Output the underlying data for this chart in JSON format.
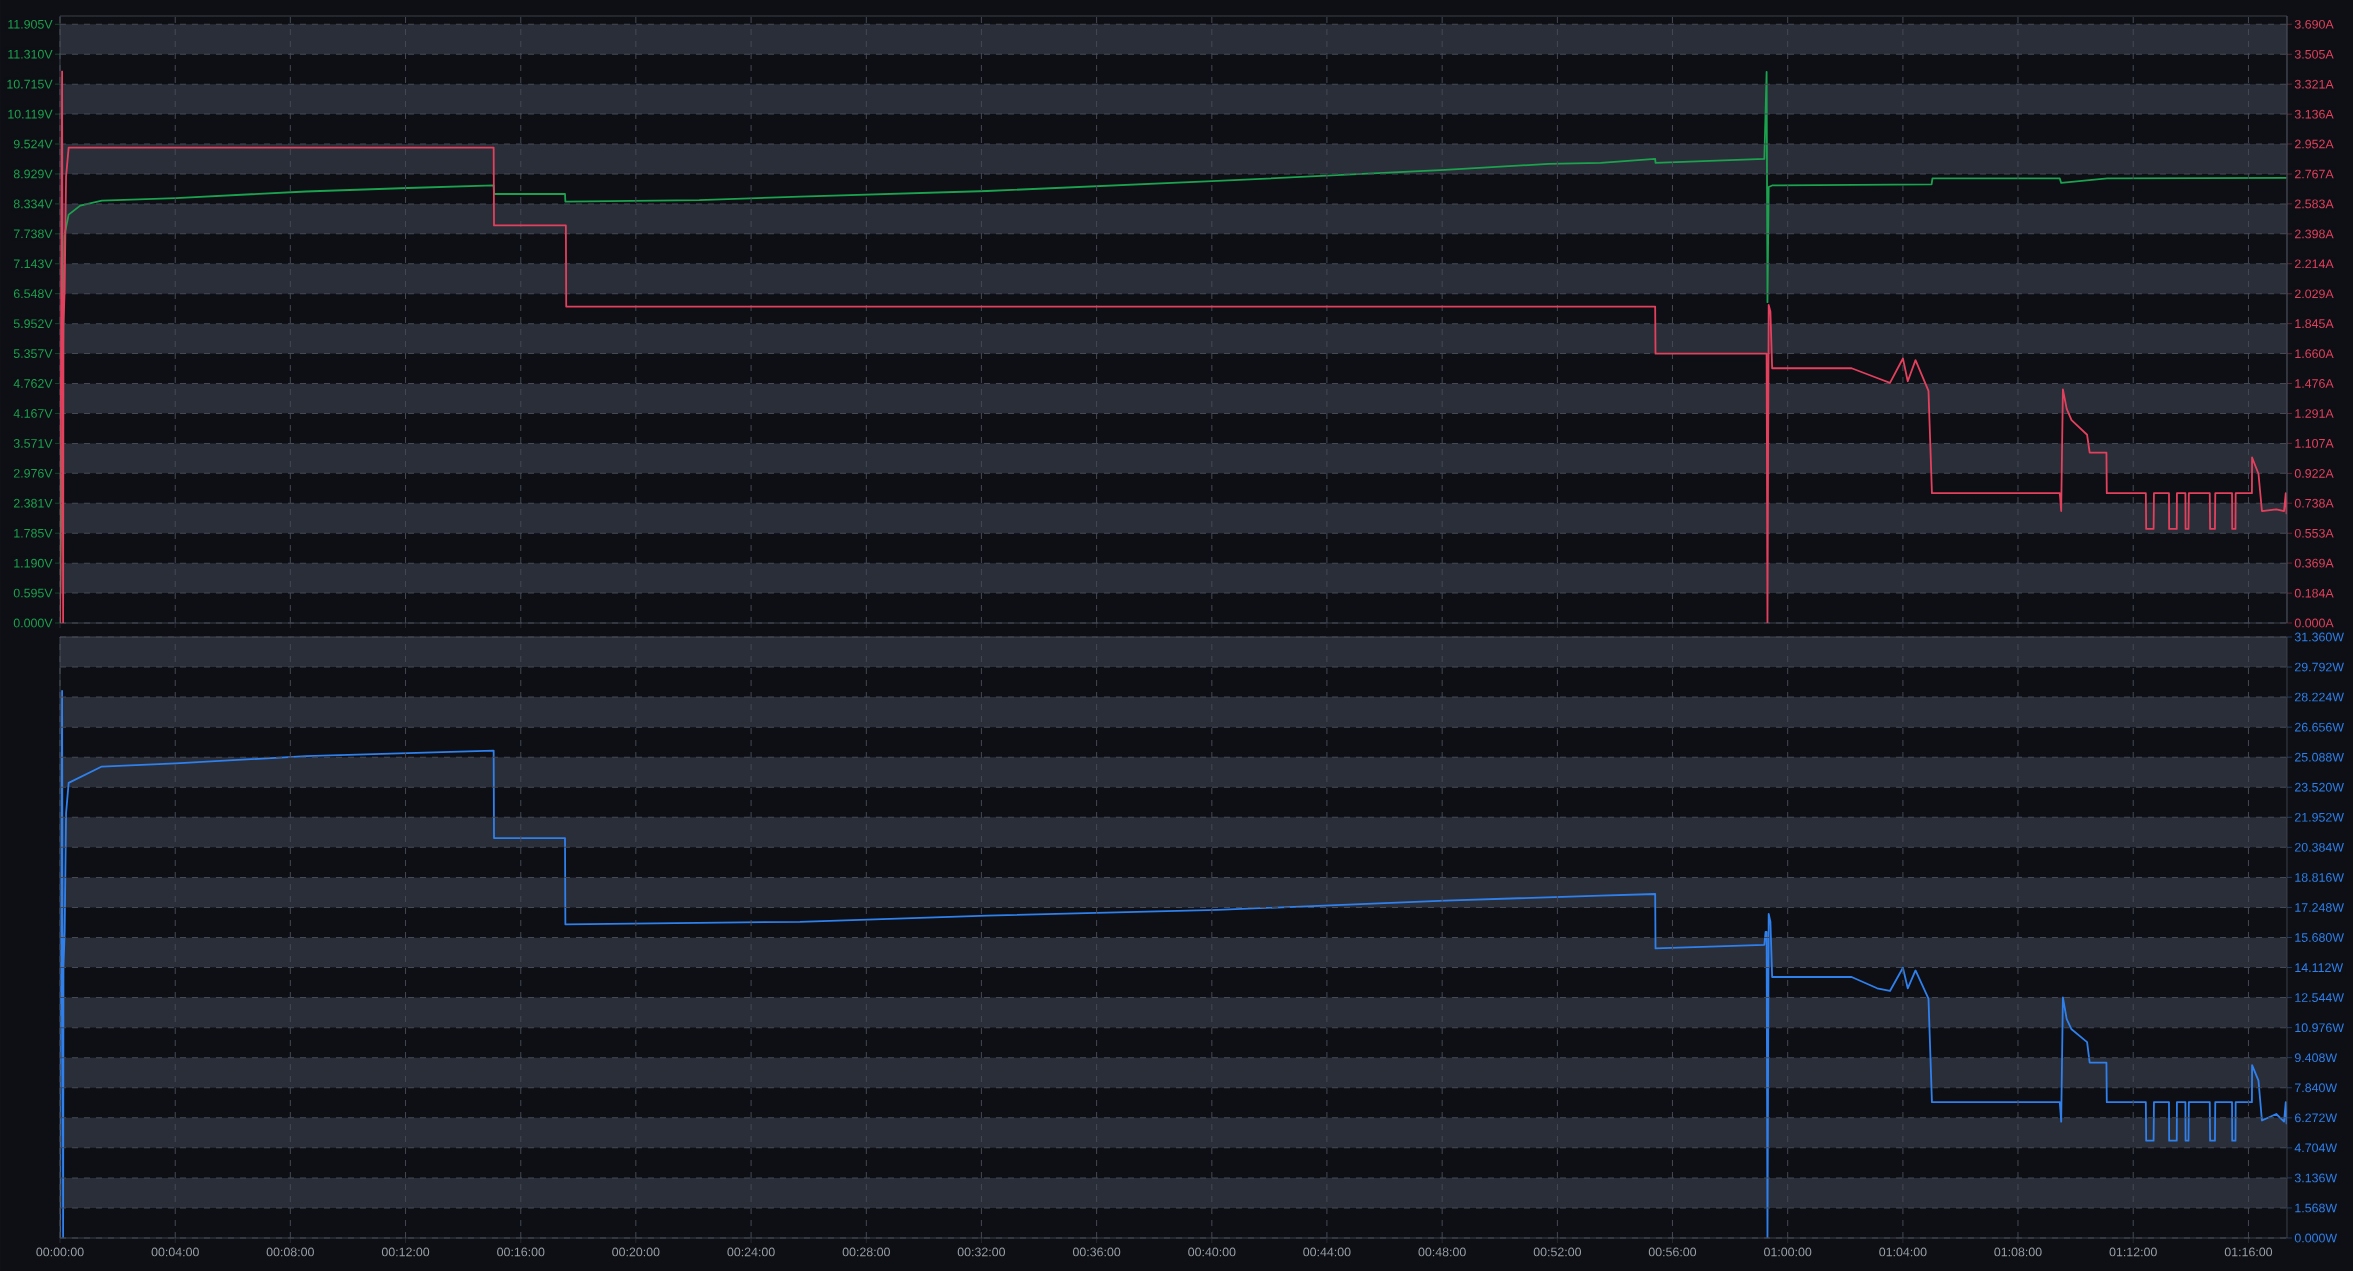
{
  "chart_data": [
    {
      "type": "line",
      "grid": true,
      "tick_labels": "y",
      "xlim": [
        0,
        1.289
      ],
      "xticks": [
        {
          "value": 0,
          "label": null
        },
        {
          "value": 0.0667,
          "label": null
        },
        {
          "value": 0.1333,
          "label": null
        },
        {
          "value": 0.2,
          "label": null
        },
        {
          "value": 0.2667,
          "label": null
        },
        {
          "value": 0.3333,
          "label": null
        },
        {
          "value": 0.4,
          "label": null
        },
        {
          "value": 0.4667,
          "label": null
        },
        {
          "value": 0.5333,
          "label": null
        },
        {
          "value": 0.6,
          "label": null
        },
        {
          "value": 0.6667,
          "label": null
        },
        {
          "value": 0.7333,
          "label": null
        },
        {
          "value": 0.8,
          "label": null
        },
        {
          "value": 0.8667,
          "label": null
        },
        {
          "value": 0.9333,
          "label": null
        },
        {
          "value": 1.0,
          "label": null
        },
        {
          "value": 1.0667,
          "label": null
        },
        {
          "value": 1.1333,
          "label": null
        },
        {
          "value": 1.2,
          "label": null
        },
        {
          "value": 1.2667,
          "label": null
        }
      ],
      "ylim": [
        0,
        12.07
      ],
      "yticks": [
        {
          "value": 0,
          "label": "0.000V"
        },
        {
          "value": 0.595,
          "label": "0.595V"
        },
        {
          "value": 1.19,
          "label": "1.190V"
        },
        {
          "value": 1.785,
          "label": "1.785V"
        },
        {
          "value": 2.381,
          "label": "2.381V"
        },
        {
          "value": 2.976,
          "label": "2.976V"
        },
        {
          "value": 3.571,
          "label": "3.571V"
        },
        {
          "value": 4.167,
          "label": "4.167V"
        },
        {
          "value": 4.762,
          "label": "4.762V"
        },
        {
          "value": 5.357,
          "label": "5.357V"
        },
        {
          "value": 5.952,
          "label": "5.952V"
        },
        {
          "value": 6.548,
          "label": "6.548V"
        },
        {
          "value": 7.143,
          "label": "7.143V"
        },
        {
          "value": 7.738,
          "label": "7.738V"
        },
        {
          "value": 8.334,
          "label": "8.334V"
        },
        {
          "value": 8.929,
          "label": "8.929V"
        },
        {
          "value": 9.524,
          "label": "9.524V"
        },
        {
          "value": 10.119,
          "label": "10.119V"
        },
        {
          "value": 10.715,
          "label": "10.715V"
        },
        {
          "value": 11.31,
          "label": "11.310V"
        },
        {
          "value": 11.905,
          "label": "11.905V"
        }
      ],
      "y2lim": [
        0,
        3.741
      ],
      "y2ticks": [
        {
          "value": 0,
          "label": "0.000A"
        },
        {
          "value": 0.184,
          "label": "0.184A"
        },
        {
          "value": 0.369,
          "label": "0.369A"
        },
        {
          "value": 0.553,
          "label": "0.553A"
        },
        {
          "value": 0.738,
          "label": "0.738A"
        },
        {
          "value": 0.922,
          "label": "0.922A"
        },
        {
          "value": 1.107,
          "label": "1.107A"
        },
        {
          "value": 1.291,
          "label": "1.291A"
        },
        {
          "value": 1.476,
          "label": "1.476A"
        },
        {
          "value": 1.66,
          "label": "1.660A"
        },
        {
          "value": 1.845,
          "label": "1.845A"
        },
        {
          "value": 2.029,
          "label": "2.029A"
        },
        {
          "value": 2.214,
          "label": "2.214A"
        },
        {
          "value": 2.398,
          "label": "2.398A"
        },
        {
          "value": 2.583,
          "label": "2.583A"
        },
        {
          "value": 2.767,
          "label": "2.767A"
        },
        {
          "value": 2.952,
          "label": "2.952A"
        },
        {
          "value": 3.136,
          "label": "3.136A"
        },
        {
          "value": 3.321,
          "label": "3.321A"
        },
        {
          "value": 3.505,
          "label": "3.505A"
        },
        {
          "value": 3.69,
          "label": "3.690A"
        }
      ],
      "bands": [
        {
          "axis": "y",
          "from": 11.31,
          "to": 11.905,
          "color": "#2a2e38"
        },
        {
          "axis": "y",
          "from": 10.119,
          "to": 10.715,
          "color": "#2a2e38"
        },
        {
          "axis": "y",
          "from": 8.929,
          "to": 9.524,
          "color": "#2a2e38"
        },
        {
          "axis": "y",
          "from": 7.738,
          "to": 8.334,
          "color": "#2a2e38"
        },
        {
          "axis": "y",
          "from": 6.548,
          "to": 7.143,
          "color": "#2a2e38"
        },
        {
          "axis": "y",
          "from": 5.357,
          "to": 5.952,
          "color": "#2a2e38"
        },
        {
          "axis": "y",
          "from": 4.167,
          "to": 4.762,
          "color": "#2a2e38"
        },
        {
          "axis": "y",
          "from": 2.976,
          "to": 3.571,
          "color": "#2a2e38"
        },
        {
          "axis": "y",
          "from": 1.785,
          "to": 2.381,
          "color": "#2a2e38"
        },
        {
          "axis": "y",
          "from": 0.595,
          "to": 1.19,
          "color": "#2a2e38"
        }
      ],
      "series": [
        {
          "color": "#1ca24f",
          "axis": "y",
          "x": [
            0,
            0.0025,
            0.005,
            0.0117,
            0.0242,
            0.067,
            0.1423,
            0.2013,
            0.251,
            0.2512,
            0.2923,
            0.2925,
            0.37,
            0.4283,
            0.5367,
            0.67,
            0.8017,
            0.8617,
            0.8917,
            0.9233,
            0.9235,
            0.9865,
            0.9878,
            0.9883,
            0.989,
            0.991,
            1.0833,
            1.0838,
            1.1575,
            1.1583,
            1.185,
            1.2888
          ],
          "values": [
            0,
            7.7,
            8.12,
            8.3,
            8.4,
            8.45,
            8.58,
            8.65,
            8.7,
            8.53,
            8.53,
            8.38,
            8.41,
            8.48,
            8.59,
            8.79,
            9.01,
            9.13,
            9.15,
            9.23,
            9.15,
            9.23,
            10.96,
            6.38,
            8.67,
            8.7,
            8.72,
            8.84,
            8.84,
            8.75,
            8.84,
            8.85
          ]
        },
        {
          "color": "#e3405e",
          "axis": "y2",
          "x": [
            0,
            0.0012,
            0.0018,
            0.002,
            0.0027,
            0.0035,
            0.005,
            0.251,
            0.2512,
            0.2928,
            0.293,
            0.9233,
            0.9235,
            0.9878,
            0.9883,
            0.989,
            0.99,
            0.991,
            1.037,
            1.0518,
            1.0592,
            1.0667,
            1.0695,
            1.074,
            1.0815,
            1.0835,
            1.1575,
            1.1583,
            1.1593,
            1.1615,
            1.1643,
            1.1733,
            1.1748,
            1.1845,
            1.1847,
            1.2073,
            1.2075,
            1.2118,
            1.212,
            1.2207,
            1.2208,
            1.2252,
            1.2253,
            1.2302,
            1.2303,
            1.232,
            1.2322,
            1.2443,
            1.2445,
            1.2473,
            1.2475,
            1.2572,
            1.2573,
            1.2592,
            1.2593,
            1.2687,
            1.2688,
            1.2725,
            1.2745,
            1.2828,
            1.2873,
            1.2883,
            1.2888
          ],
          "values": [
            0,
            3.4,
            0,
            1.83,
            2.06,
            2.75,
            2.93,
            2.93,
            2.45,
            2.45,
            1.95,
            1.95,
            1.66,
            1.66,
            0,
            1.96,
            1.92,
            1.57,
            1.57,
            1.51,
            1.48,
            1.63,
            1.49,
            1.62,
            1.43,
            0.8,
            0.8,
            0.69,
            1.44,
            1.32,
            1.25,
            1.16,
            1.05,
            1.05,
            0.8,
            0.8,
            0.58,
            0.58,
            0.8,
            0.8,
            0.58,
            0.58,
            0.8,
            0.8,
            0.58,
            0.58,
            0.8,
            0.8,
            0.58,
            0.58,
            0.8,
            0.8,
            0.58,
            0.58,
            0.8,
            0.8,
            1.02,
            0.92,
            0.69,
            0.7,
            0.69,
            0.8,
            0.67
          ]
        }
      ]
    },
    {
      "type": "line",
      "grid": true,
      "xlim": [
        0,
        1.289
      ],
      "xticks": [
        {
          "value": 0,
          "label": "00:00:00"
        },
        {
          "value": 0.0667,
          "label": "00:04:00"
        },
        {
          "value": 0.1333,
          "label": "00:08:00"
        },
        {
          "value": 0.2,
          "label": "00:12:00"
        },
        {
          "value": 0.2667,
          "label": "00:16:00"
        },
        {
          "value": 0.3333,
          "label": "00:20:00"
        },
        {
          "value": 0.4,
          "label": "00:24:00"
        },
        {
          "value": 0.4667,
          "label": "00:28:00"
        },
        {
          "value": 0.5333,
          "label": "00:32:00"
        },
        {
          "value": 0.6,
          "label": "00:36:00"
        },
        {
          "value": 0.6667,
          "label": "00:40:00"
        },
        {
          "value": 0.7333,
          "label": "00:44:00"
        },
        {
          "value": 0.8,
          "label": "00:48:00"
        },
        {
          "value": 0.8667,
          "label": "00:52:00"
        },
        {
          "value": 0.9333,
          "label": "00:56:00"
        },
        {
          "value": 1.0,
          "label": "01:00:00"
        },
        {
          "value": 1.0667,
          "label": "01:04:00"
        },
        {
          "value": 1.1333,
          "label": "01:08:00"
        },
        {
          "value": 1.2,
          "label": "01:12:00"
        },
        {
          "value": 1.2667,
          "label": "01:16:00"
        }
      ],
      "y2lim": [
        0,
        31.36
      ],
      "y2ticks": [
        {
          "value": 0,
          "label": "0.000W"
        },
        {
          "value": 1.568,
          "label": "1.568W"
        },
        {
          "value": 3.136,
          "label": "3.136W"
        },
        {
          "value": 4.704,
          "label": "4.704W"
        },
        {
          "value": 6.272,
          "label": "6.272W"
        },
        {
          "value": 7.84,
          "label": "7.840W"
        },
        {
          "value": 9.408,
          "label": "9.408W"
        },
        {
          "value": 10.976,
          "label": "10.976W"
        },
        {
          "value": 12.544,
          "label": "12.544W"
        },
        {
          "value": 14.112,
          "label": "14.112W"
        },
        {
          "value": 15.68,
          "label": "15.680W"
        },
        {
          "value": 17.248,
          "label": "17.248W"
        },
        {
          "value": 18.816,
          "label": "18.816W"
        },
        {
          "value": 20.384,
          "label": "20.384W"
        },
        {
          "value": 21.952,
          "label": "21.952W"
        },
        {
          "value": 23.52,
          "label": "23.520W"
        },
        {
          "value": 25.088,
          "label": "25.088W"
        },
        {
          "value": 26.656,
          "label": "26.656W"
        },
        {
          "value": 28.224,
          "label": "28.224W"
        },
        {
          "value": 29.792,
          "label": "29.792W"
        },
        {
          "value": 31.36,
          "label": "31.360W"
        }
      ],
      "bands": [
        {
          "axis": "y2",
          "from": 29.792,
          "to": 31.36,
          "color": "#2a2e38"
        },
        {
          "axis": "y2",
          "from": 26.656,
          "to": 28.224,
          "color": "#2a2e38"
        },
        {
          "axis": "y2",
          "from": 23.52,
          "to": 25.088,
          "color": "#2a2e38"
        },
        {
          "axis": "y2",
          "from": 20.384,
          "to": 21.952,
          "color": "#2a2e38"
        },
        {
          "axis": "y2",
          "from": 17.248,
          "to": 18.816,
          "color": "#2a2e38"
        },
        {
          "axis": "y2",
          "from": 14.112,
          "to": 15.68,
          "color": "#2a2e38"
        },
        {
          "axis": "y2",
          "from": 10.976,
          "to": 12.544,
          "color": "#2a2e38"
        },
        {
          "axis": "y2",
          "from": 7.84,
          "to": 9.408,
          "color": "#2a2e38"
        },
        {
          "axis": "y2",
          "from": 4.704,
          "to": 6.272,
          "color": "#2a2e38"
        },
        {
          "axis": "y2",
          "from": 1.568,
          "to": 3.136,
          "color": "#2a2e38"
        }
      ],
      "series": [
        {
          "color": "#2f80ed",
          "axis": "y2",
          "x": [
            0,
            0.0012,
            0.0018,
            0.002,
            0.0027,
            0.0035,
            0.005,
            0.0242,
            0.067,
            0.1423,
            0.2013,
            0.251,
            0.2512,
            0.2923,
            0.2925,
            0.4283,
            0.5367,
            0.67,
            0.8017,
            0.8917,
            0.9233,
            0.9235,
            0.9865,
            0.9872,
            0.9878,
            0.9883,
            0.989,
            0.99,
            0.991,
            1.037,
            1.0518,
            1.0592,
            1.0667,
            1.0695,
            1.074,
            1.0815,
            1.0835,
            1.1575,
            1.1583,
            1.1593,
            1.1615,
            1.1643,
            1.1733,
            1.1748,
            1.1845,
            1.1847,
            1.2073,
            1.2075,
            1.2118,
            1.212,
            1.2207,
            1.2208,
            1.2252,
            1.2253,
            1.2302,
            1.2303,
            1.232,
            1.2322,
            1.2443,
            1.2445,
            1.2473,
            1.2475,
            1.2572,
            1.2573,
            1.2592,
            1.2593,
            1.2687,
            1.2688,
            1.2725,
            1.2745,
            1.2828,
            1.2873,
            1.2883,
            1.2888
          ],
          "values": [
            0,
            28.55,
            0,
            14.16,
            16.0,
            22.15,
            23.75,
            24.6,
            24.77,
            25.14,
            25.3,
            25.43,
            20.87,
            20.87,
            16.37,
            16.5,
            16.82,
            17.12,
            17.6,
            17.87,
            17.95,
            15.11,
            15.3,
            15.97,
            15.97,
            0,
            16.91,
            16.51,
            13.62,
            13.62,
            13.03,
            12.89,
            14.1,
            13.03,
            13.96,
            12.49,
            7.09,
            7.09,
            6.07,
            12.55,
            11.42,
            10.89,
            10.22,
            9.15,
            9.15,
            7.09,
            7.09,
            5.08,
            5.08,
            7.09,
            7.09,
            5.08,
            5.08,
            7.09,
            7.09,
            5.08,
            5.08,
            7.09,
            7.09,
            5.08,
            5.08,
            7.09,
            7.09,
            5.08,
            5.08,
            7.09,
            7.09,
            9.02,
            8.21,
            6.13,
            6.47,
            6.07,
            7.09,
            5.94
          ]
        }
      ]
    }
  ]
}
